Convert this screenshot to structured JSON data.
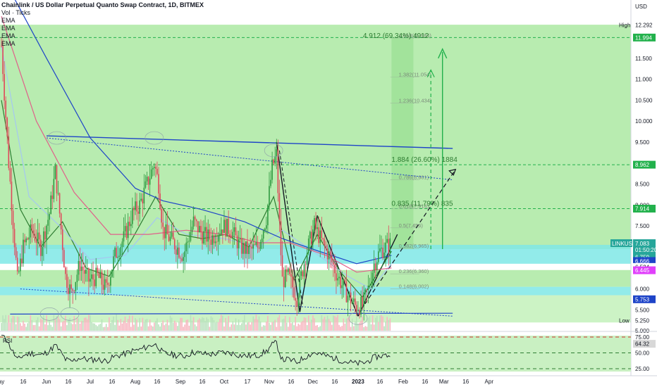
{
  "header": {
    "title": "Chainlink / US Dollar Perpetual Quanto Swap Contract, 1D, BITMEX",
    "indicators": [
      "Vol · Ticks",
      "EMA",
      "EMA",
      "EMA",
      "EMA"
    ]
  },
  "chart_data": {
    "type": "candlestick",
    "symbol": "LINKUSD",
    "currency_label": "USD",
    "y_axis": {
      "ticks": [
        12.0,
        11.5,
        11.0,
        10.5,
        10.0,
        9.5,
        9.0,
        8.5,
        8.0,
        7.5,
        7.0,
        6.5,
        6.0,
        5.5,
        5.0
      ],
      "tick_labels": [
        "12.000",
        "11.500",
        "11.000",
        "10.500",
        "10.000",
        "9.500",
        "9.000",
        "8.500",
        "8.000",
        "7.500",
        "7.000",
        "6.500",
        "6.000",
        "5.500",
        "5.000"
      ]
    },
    "x_axis": {
      "tick_labels": [
        "ay",
        "16",
        "Jun",
        "16",
        "Jul",
        "16",
        "Aug",
        "16",
        "Sep",
        "16",
        "Oct",
        "17",
        "Nov",
        "16",
        "Dec",
        "16",
        "2023",
        "16",
        "Feb",
        "16",
        "Mar",
        "16",
        "Apr"
      ],
      "tick_dates": [
        "2022-05-01",
        "2022-05-16",
        "2022-06-01",
        "2022-06-16",
        "2022-07-01",
        "2022-07-16",
        "2022-08-01",
        "2022-08-16",
        "2022-09-01",
        "2022-09-16",
        "2022-10-01",
        "2022-10-17",
        "2022-11-01",
        "2022-11-16",
        "2022-12-01",
        "2022-12-16",
        "2023-01-01",
        "2023-01-16",
        "2023-02-01",
        "2023-02-16",
        "2023-03-01",
        "2023-03-16",
        "2023-04-01"
      ]
    },
    "price_path": [
      [
        "2022-05-01",
        11.8
      ],
      [
        "2022-05-06",
        9.0
      ],
      [
        "2022-05-12",
        6.2
      ],
      [
        "2022-05-16",
        7.0
      ],
      [
        "2022-05-22",
        7.4
      ],
      [
        "2022-05-28",
        7.0
      ],
      [
        "2022-06-03",
        7.8
      ],
      [
        "2022-06-07",
        8.8
      ],
      [
        "2022-06-10",
        7.8
      ],
      [
        "2022-06-14",
        6.3
      ],
      [
        "2022-06-18",
        5.9
      ],
      [
        "2022-06-24",
        6.6
      ],
      [
        "2022-06-30",
        6.2
      ],
      [
        "2022-07-06",
        6.3
      ],
      [
        "2022-07-12",
        6.0
      ],
      [
        "2022-07-18",
        6.8
      ],
      [
        "2022-07-24",
        7.2
      ],
      [
        "2022-07-30",
        7.8
      ],
      [
        "2022-08-04",
        8.0
      ],
      [
        "2022-08-10",
        8.6
      ],
      [
        "2022-08-14",
        9.0
      ],
      [
        "2022-08-17",
        8.5
      ],
      [
        "2022-08-20",
        7.4
      ],
      [
        "2022-08-27",
        7.1
      ],
      [
        "2022-09-03",
        6.8
      ],
      [
        "2022-09-10",
        7.6
      ],
      [
        "2022-09-16",
        7.3
      ],
      [
        "2022-09-22",
        7.2
      ],
      [
        "2022-09-30",
        7.5
      ],
      [
        "2022-10-06",
        7.4
      ],
      [
        "2022-10-12",
        7.0
      ],
      [
        "2022-10-18",
        6.9
      ],
      [
        "2022-10-24",
        7.0
      ],
      [
        "2022-10-30",
        7.7
      ],
      [
        "2022-11-03",
        8.9
      ],
      [
        "2022-11-06",
        9.2
      ],
      [
        "2022-11-08",
        7.5
      ],
      [
        "2022-11-10",
        6.2
      ],
      [
        "2022-11-14",
        6.3
      ],
      [
        "2022-11-20",
        5.8
      ],
      [
        "2022-11-26",
        6.8
      ],
      [
        "2022-12-02",
        7.5
      ],
      [
        "2022-12-06",
        7.2
      ],
      [
        "2022-12-12",
        6.8
      ],
      [
        "2022-12-18",
        6.3
      ],
      [
        "2022-12-24",
        5.9
      ],
      [
        "2022-12-30",
        5.6
      ],
      [
        "2023-01-04",
        5.6
      ],
      [
        "2023-01-08",
        6.0
      ],
      [
        "2023-01-12",
        6.6
      ],
      [
        "2023-01-16",
        6.9
      ],
      [
        "2023-01-20",
        7.0
      ],
      [
        "2023-01-24",
        7.08
      ]
    ],
    "ema_lines": [
      {
        "name": "EMA",
        "color": "#2e7d32",
        "values": [
          [
            "2022-05-01",
            10.5
          ],
          [
            "2022-05-14",
            7.9
          ],
          [
            "2022-05-28",
            7.0
          ],
          [
            "2022-06-12",
            7.6
          ],
          [
            "2022-06-28",
            6.5
          ],
          [
            "2022-07-14",
            6.3
          ],
          [
            "2022-07-30",
            7.2
          ],
          [
            "2022-08-15",
            8.2
          ],
          [
            "2022-08-31",
            7.3
          ],
          [
            "2022-09-16",
            7.2
          ],
          [
            "2022-10-02",
            7.3
          ],
          [
            "2022-10-18",
            7.0
          ],
          [
            "2022-11-04",
            8.2
          ],
          [
            "2022-11-18",
            6.2
          ],
          [
            "2022-12-04",
            7.3
          ],
          [
            "2022-12-20",
            6.4
          ],
          [
            "2023-01-04",
            5.8
          ],
          [
            "2023-01-24",
            6.9
          ]
        ]
      },
      {
        "name": "EMA",
        "color": "#a5c8f0",
        "values": [
          [
            "2022-05-01",
            11.8
          ],
          [
            "2022-05-20",
            8.2
          ],
          [
            "2022-06-10",
            7.5
          ],
          [
            "2022-07-01",
            6.7
          ],
          [
            "2022-07-25",
            6.8
          ],
          [
            "2022-08-16",
            7.7
          ],
          [
            "2022-09-05",
            7.3
          ],
          [
            "2022-10-01",
            7.2
          ],
          [
            "2022-10-25",
            7.0
          ],
          [
            "2022-11-10",
            7.4
          ],
          [
            "2022-12-01",
            6.9
          ],
          [
            "2022-12-25",
            6.3
          ],
          [
            "2023-01-10",
            6.0
          ],
          [
            "2023-01-24",
            6.6
          ]
        ]
      },
      {
        "name": "EMA",
        "color": "#e0608a",
        "values": [
          [
            "2022-05-01",
            12.5
          ],
          [
            "2022-05-25",
            10.0
          ],
          [
            "2022-06-20",
            8.3
          ],
          [
            "2022-07-15",
            7.3
          ],
          [
            "2022-08-10",
            7.3
          ],
          [
            "2022-09-05",
            7.4
          ],
          [
            "2022-10-01",
            7.3
          ],
          [
            "2022-10-25",
            7.1
          ],
          [
            "2022-11-15",
            7.1
          ],
          [
            "2022-12-10",
            6.8
          ],
          [
            "2022-12-31",
            6.4
          ],
          [
            "2023-01-24",
            6.5
          ]
        ]
      },
      {
        "name": "EMA",
        "color": "#1e44c8",
        "values": [
          [
            "2022-05-01",
            13.5
          ],
          [
            "2022-06-01",
            11.5
          ],
          [
            "2022-07-01",
            9.6
          ],
          [
            "2022-08-01",
            8.4
          ],
          [
            "2022-08-20",
            8.1
          ],
          [
            "2022-09-15",
            7.9
          ],
          [
            "2022-10-15",
            7.6
          ],
          [
            "2022-11-10",
            7.2
          ],
          [
            "2022-12-05",
            6.9
          ],
          [
            "2022-12-31",
            6.6
          ],
          [
            "2023-01-24",
            6.8
          ]
        ]
      }
    ],
    "last_price": {
      "label": "LINKUSD",
      "value": "7.083",
      "countdown": "01:50:20",
      "color": "#26a69a"
    },
    "price_tags": [
      {
        "value": "12.292",
        "prefix": "High",
        "bg": "#ffffff",
        "fg": "#131722"
      },
      {
        "value": "11.994",
        "bg": "#22b14c",
        "fg": "#ffffff"
      },
      {
        "value": "8.962",
        "bg": "#22b14c",
        "fg": "#ffffff"
      },
      {
        "value": "7.914",
        "bg": "#22b14c",
        "fg": "#ffffff"
      },
      {
        "value": "6.759",
        "bg": "#26a69a",
        "fg": "#ffffff"
      },
      {
        "value": "6.666",
        "bg": "#1e44c8",
        "fg": "#ffffff"
      },
      {
        "value": "6.524",
        "bg": "#ffffff",
        "fg": "#131722"
      },
      {
        "value": "6.445",
        "bg": "#e040fb",
        "fg": "#ffffff"
      },
      {
        "value": "5.753",
        "bg": "#1e44c8",
        "fg": "#ffffff"
      },
      {
        "value": "5.250",
        "prefix": "Low",
        "bg": "#ffffff",
        "fg": "#131722"
      }
    ],
    "fib_levels": [
      {
        "label": "1.618(11.984)",
        "value": 11.984
      },
      {
        "label": "1.382(11.054)",
        "value": 11.054
      },
      {
        "label": "1.236(10.434)",
        "value": 10.434
      },
      {
        "label": "0.786(8.601)",
        "value": 8.601
      },
      {
        "label": "0.618(7.914)",
        "value": 7.914
      },
      {
        "label": "0.5(7.456)",
        "value": 7.456
      },
      {
        "label": "0.382(6.965)",
        "value": 6.965
      },
      {
        "label": "0.236(6.360)",
        "value": 6.36
      },
      {
        "label": "0.148(6.002)",
        "value": 6.002
      }
    ],
    "measurements": [
      {
        "label": "4.912 (69.34%) 4912",
        "value": 11.95
      },
      {
        "label": "1.884 (26.60%) 1884",
        "value": 9.0
      },
      {
        "label": "0.835 (11.79%) 835",
        "value": 7.95
      }
    ],
    "supply_demand_zones": [
      [
        6.6,
        7.05
      ],
      [
        5.85,
        6.05
      ]
    ],
    "dashed_levels": [
      11.994,
      8.962,
      7.914
    ],
    "rsi": {
      "label": "RSI",
      "value": "64.32",
      "ticks": [
        "75.00",
        "50.00",
        "25.00"
      ],
      "value_color": "#131722"
    }
  }
}
